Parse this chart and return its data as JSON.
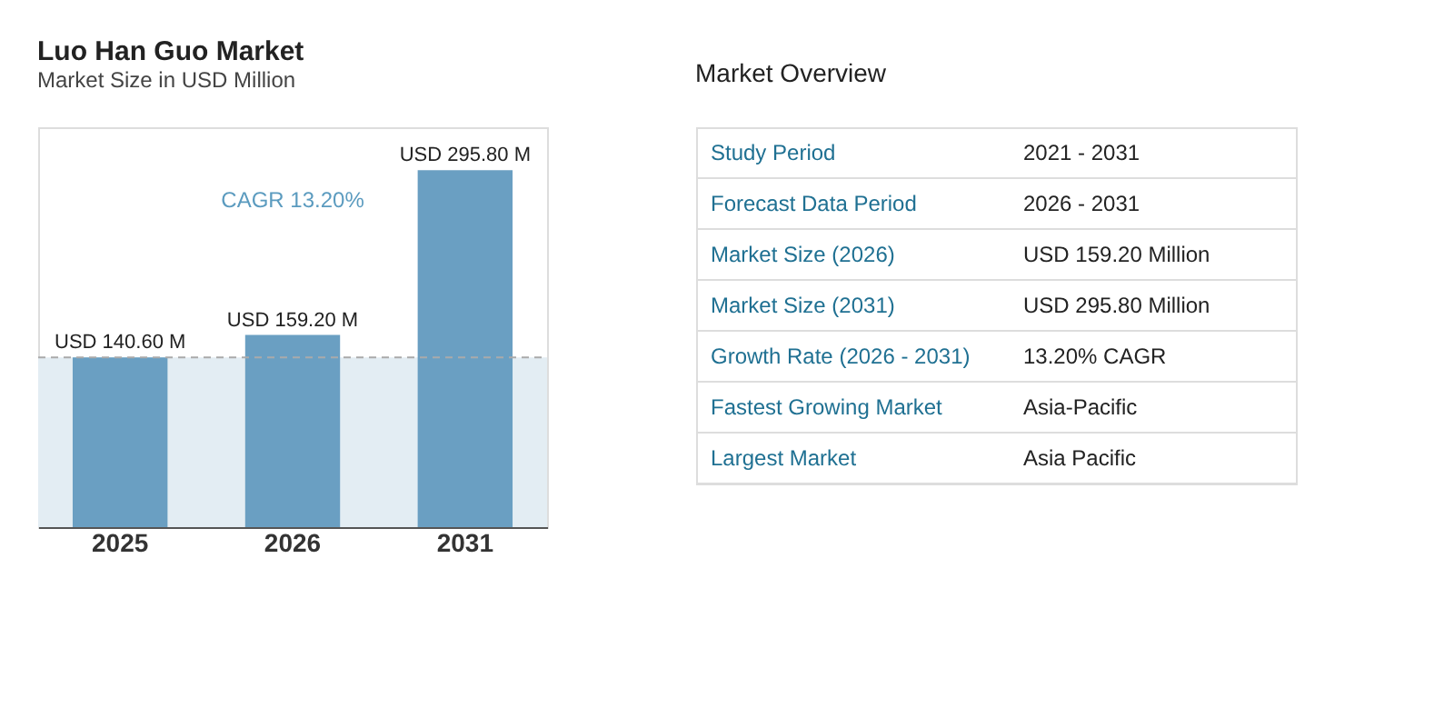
{
  "chart_data": [
    {
      "type": "bar",
      "title": "Luo Han Guo Market",
      "subtitle": "Market Size in USD Million",
      "categories": [
        "2025",
        "2026",
        "2031"
      ],
      "values": [
        140.6,
        159.2,
        295.8
      ],
      "color": "#6a9fc2",
      "value_labels": [
        "USD 140.60 M",
        "USD 159.20 M",
        "USD 295.80 M"
      ],
      "annotations": [
        "CAGR 13.20%"
      ],
      "ref_lines": [
        {
          "axis": "y",
          "value": 140.6,
          "color": "#aaaaaa",
          "line_style": "dashed"
        }
      ],
      "bands": [
        {
          "axis": "y",
          "from": 0,
          "to": 140.6,
          "color": "#e3edf3"
        }
      ],
      "grid": false
    },
    {
      "type": "other",
      "title": "Market Overview",
      "annotations": [
        "Study Period",
        "2021 - 2031",
        "Forecast Data Period",
        "2026 - 2031",
        "Market Size (2026)",
        "USD 159.20 Million",
        "Market Size (2031)",
        "USD 295.80 Million",
        "Growth Rate (2026 - 2031)",
        "13.20% CAGR",
        "Fastest Growing Market",
        "Asia-Pacific",
        "Largest Market",
        "Asia Pacific"
      ]
    }
  ]
}
